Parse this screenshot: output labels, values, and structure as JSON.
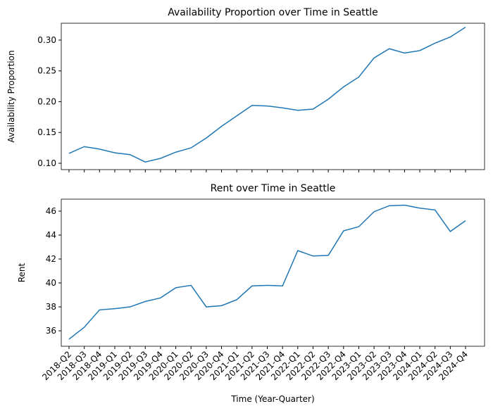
{
  "chart_data": [
    {
      "type": "line",
      "title": "Availability Proportion over Time in Seattle",
      "ylabel": "Availability Proportion",
      "series": [
        {
          "name": "Availability Proportion",
          "color": "#1f77b4",
          "values": [
            0.116,
            0.127,
            0.123,
            0.117,
            0.114,
            0.102,
            0.108,
            0.118,
            0.125,
            0.141,
            0.16,
            0.177,
            0.194,
            0.193,
            0.19,
            0.186,
            0.188,
            0.204,
            0.224,
            0.24,
            0.271,
            0.286,
            0.279,
            0.283,
            0.295,
            0.305,
            0.321
          ]
        }
      ],
      "ylim": [
        0.0897,
        0.3274
      ],
      "yticks": [
        {
          "value": 0.1,
          "label": "0.10"
        },
        {
          "value": 0.15,
          "label": "0.15"
        },
        {
          "value": 0.2,
          "label": "0.20"
        },
        {
          "value": 0.25,
          "label": "0.25"
        },
        {
          "value": 0.3,
          "label": "0.30"
        }
      ]
    },
    {
      "type": "line",
      "title": "Rent over Time in Seattle",
      "ylabel": "Rent",
      "xlabel": "Time (Year-Quarter)",
      "categories": [
        "2018-Q2",
        "2018-Q3",
        "2018-Q4",
        "2019-Q1",
        "2019-Q2",
        "2019-Q3",
        "2019-Q4",
        "2020-Q1",
        "2020-Q2",
        "2020-Q3",
        "2020-Q4",
        "2021-Q1",
        "2021-Q2",
        "2021-Q3",
        "2021-Q4",
        "2022-Q1",
        "2022-Q2",
        "2022-Q3",
        "2022-Q4",
        "2023-Q1",
        "2023-Q2",
        "2023-Q3",
        "2023-Q4",
        "2024-Q1",
        "2024-Q2",
        "2024-Q3",
        "2024-Q4"
      ],
      "series": [
        {
          "name": "Rent",
          "color": "#1f77b4",
          "values": [
            35.3,
            36.3,
            37.75,
            37.85,
            38.0,
            38.45,
            38.75,
            39.6,
            39.8,
            38.0,
            38.1,
            38.6,
            39.75,
            39.8,
            39.75,
            42.7,
            42.25,
            42.3,
            44.35,
            44.7,
            45.95,
            46.45,
            46.5,
            46.25,
            46.1,
            44.3,
            45.2
          ]
        }
      ],
      "ylim": [
        34.71,
        47.0
      ],
      "yticks": [
        36,
        38,
        40,
        42,
        44,
        46
      ]
    }
  ]
}
